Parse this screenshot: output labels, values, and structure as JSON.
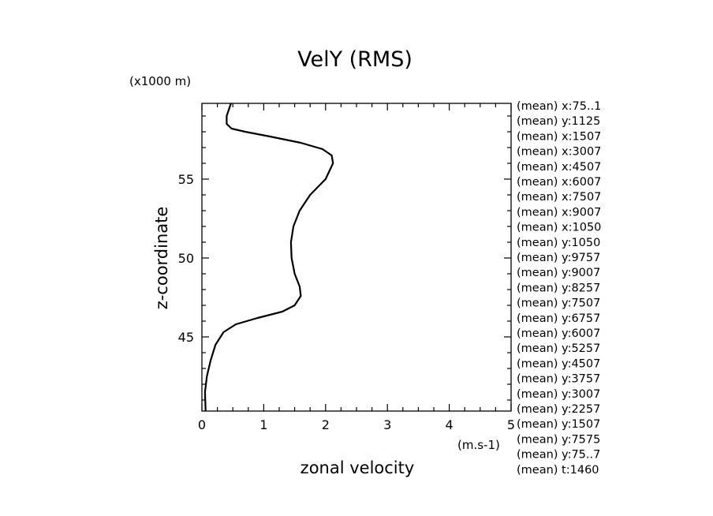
{
  "chart_data": {
    "type": "line",
    "title": "VelY (RMS)",
    "xlabel": "zonal velocity",
    "ylabel": "z-coordinate",
    "x_unit": "(m.s-1)",
    "y_unit": "(x1000 m)",
    "xlim": [
      0,
      5
    ],
    "ylim": [
      40.3,
      59.8
    ],
    "x_ticks": [
      "0",
      "1",
      "2",
      "3",
      "4",
      "5"
    ],
    "y_ticks": [
      "45",
      "50",
      "55"
    ],
    "grid": false,
    "series": [
      {
        "x": [
          0.06,
          0.05,
          0.08,
          0.14,
          0.22,
          0.35,
          0.55,
          0.9,
          1.3,
          1.5,
          1.6,
          1.58,
          1.5,
          1.45,
          1.44,
          1.48,
          1.58,
          1.75,
          2.0,
          2.12,
          2.1,
          1.95,
          1.6,
          1.1,
          0.7,
          0.48,
          0.4,
          0.4,
          0.47
        ],
        "y": [
          40.3,
          41.5,
          42.5,
          43.5,
          44.5,
          45.3,
          45.8,
          46.2,
          46.6,
          47.0,
          47.6,
          48.2,
          49.0,
          50.0,
          51.0,
          52.0,
          53.0,
          54.0,
          55.0,
          56.0,
          56.5,
          56.9,
          57.3,
          57.7,
          58.0,
          58.2,
          58.5,
          59.0,
          59.8
        ]
      }
    ],
    "side_labels": [
      "(mean) x:75..1",
      "(mean) y:1125",
      "(mean) x:1507",
      "(mean) x:3007",
      "(mean) x:4507",
      "(mean) x:6007",
      "(mean) x:7507",
      "(mean) x:9007",
      "(mean) x:1050",
      "(mean) y:1050",
      "(mean) y:9757",
      "(mean) y:9007",
      "(mean) y:8257",
      "(mean) y:7507",
      "(mean) y:6757",
      "(mean) y:6007",
      "(mean) y:5257",
      "(mean) y:4507",
      "(mean) y:3757",
      "(mean) y:3007",
      "(mean) y:2257",
      "(mean) y:1507",
      "(mean) y:7575",
      "(mean) y:75..7",
      "(mean) t:1460"
    ]
  }
}
